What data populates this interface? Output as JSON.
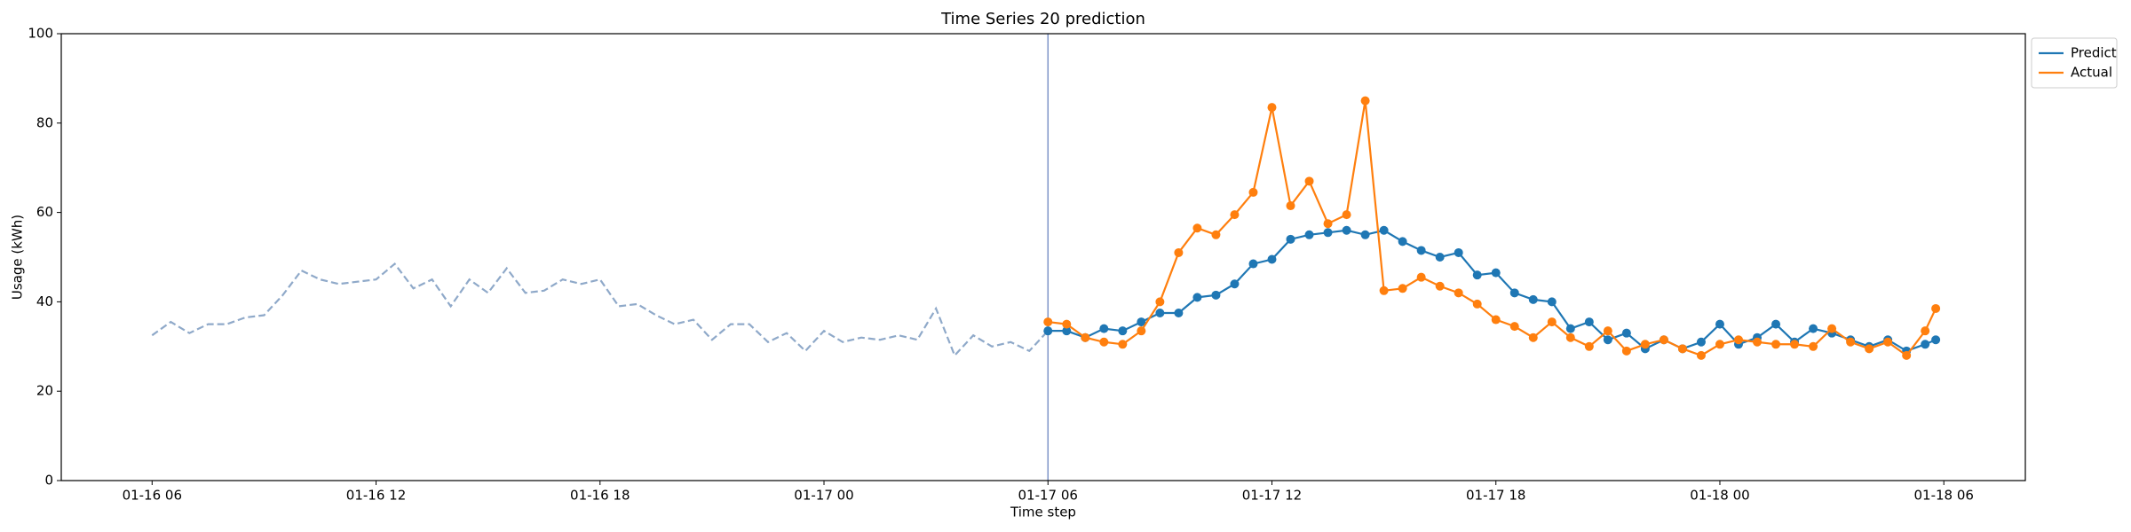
{
  "chart_data": {
    "type": "line",
    "title": "Time Series 20 prediction",
    "x_label": "Time step",
    "y_label": "Usage (kWh)",
    "xlim": [
      "01-16 03:34",
      "01-18 08:11"
    ],
    "xticks": [
      "01-16 06",
      "01-16 12",
      "01-16 18",
      "01-17 00",
      "01-17 06",
      "01-17 12",
      "01-17 18",
      "01-18 00",
      "01-18 06"
    ],
    "ylim": [
      0,
      100
    ],
    "yticks": [
      0,
      20,
      40,
      60,
      80,
      100
    ],
    "vline": "01-17 06",
    "vline_color": "#7f96c8",
    "legend": "upper right outside",
    "series": [
      {
        "color": "#8fa9c9",
        "style": "dashed",
        "x": [
          "01-16 06:00",
          "01-16 06:30",
          "01-16 07:00",
          "01-16 07:30",
          "01-16 08:00",
          "01-16 08:30",
          "01-16 09:00",
          "01-16 09:30",
          "01-16 10:00",
          "01-16 10:30",
          "01-16 11:00",
          "01-16 11:30",
          "01-16 12:00",
          "01-16 12:30",
          "01-16 13:00",
          "01-16 13:30",
          "01-16 14:00",
          "01-16 14:30",
          "01-16 15:00",
          "01-16 15:30",
          "01-16 16:00",
          "01-16 16:30",
          "01-16 17:00",
          "01-16 17:30",
          "01-16 18:00",
          "01-16 18:30",
          "01-16 19:00",
          "01-16 19:30",
          "01-16 20:00",
          "01-16 20:30",
          "01-16 21:00",
          "01-16 21:30",
          "01-16 22:00",
          "01-16 22:30",
          "01-16 23:00",
          "01-16 23:30",
          "01-17 00:00",
          "01-17 00:30",
          "01-17 01:00",
          "01-17 01:30",
          "01-17 02:00",
          "01-17 02:30",
          "01-17 03:00",
          "01-17 03:30",
          "01-17 04:00",
          "01-17 04:30",
          "01-17 05:00",
          "01-17 05:30",
          "01-17 06:00"
        ],
        "values": [
          32.5,
          35.5,
          33,
          35,
          35,
          36.5,
          37,
          41.5,
          47,
          45,
          44,
          44.5,
          45,
          48.5,
          43,
          45,
          39,
          45,
          42,
          47.5,
          42,
          42.5,
          45,
          44,
          45,
          39,
          39.5,
          37,
          35,
          36,
          31.5,
          35,
          35,
          31,
          33,
          29,
          33.5,
          31,
          32,
          31.5,
          32.5,
          31.5,
          38.5,
          28,
          32.5,
          30,
          31,
          29,
          33.5
        ]
      },
      {
        "name": "Predict",
        "color": "#1f77b4",
        "style": "solid",
        "marker": "o",
        "x": [
          "01-17 06:00",
          "01-17 06:30",
          "01-17 07:00",
          "01-17 07:30",
          "01-17 08:00",
          "01-17 08:30",
          "01-17 09:00",
          "01-17 09:30",
          "01-17 10:00",
          "01-17 10:30",
          "01-17 11:00",
          "01-17 11:30",
          "01-17 12:00",
          "01-17 12:30",
          "01-17 13:00",
          "01-17 13:30",
          "01-17 14:00",
          "01-17 14:30",
          "01-17 15:00",
          "01-17 15:30",
          "01-17 16:00",
          "01-17 16:30",
          "01-17 17:00",
          "01-17 17:30",
          "01-17 18:00",
          "01-17 18:30",
          "01-17 19:00",
          "01-17 19:30",
          "01-17 20:00",
          "01-17 20:30",
          "01-17 21:00",
          "01-17 21:30",
          "01-17 22:00",
          "01-17 22:30",
          "01-17 23:00",
          "01-17 23:30",
          "01-18 00:00",
          "01-18 00:30",
          "01-18 01:00",
          "01-18 01:30",
          "01-18 02:00",
          "01-18 02:30",
          "01-18 03:00",
          "01-18 03:30",
          "01-18 04:00",
          "01-18 04:30",
          "01-18 05:00",
          "01-18 05:30",
          "01-18 05:47"
        ],
        "values": [
          33.5,
          33.5,
          32,
          34,
          33.5,
          35.5,
          37.5,
          37.5,
          41,
          41.5,
          44,
          48.5,
          49.5,
          54,
          55,
          55.5,
          56,
          55,
          56,
          53.5,
          51.5,
          50,
          51,
          46,
          46.5,
          42,
          40.5,
          40,
          34,
          35.5,
          31.5,
          33,
          29.5,
          31.5,
          29.5,
          31,
          35,
          30.5,
          32,
          35,
          31,
          34,
          33,
          31.5,
          30,
          31.5,
          29,
          30.5,
          31.5
        ]
      },
      {
        "name": "Actual",
        "color": "#ff7f0e",
        "style": "solid",
        "marker": "o",
        "x": [
          "01-17 06:00",
          "01-17 06:30",
          "01-17 07:00",
          "01-17 07:30",
          "01-17 08:00",
          "01-17 08:30",
          "01-17 09:00",
          "01-17 09:30",
          "01-17 10:00",
          "01-17 10:30",
          "01-17 11:00",
          "01-17 11:30",
          "01-17 12:00",
          "01-17 12:30",
          "01-17 13:00",
          "01-17 13:30",
          "01-17 14:00",
          "01-17 14:30",
          "01-17 15:00",
          "01-17 15:30",
          "01-17 16:00",
          "01-17 16:30",
          "01-17 17:00",
          "01-17 17:30",
          "01-17 18:00",
          "01-17 18:30",
          "01-17 19:00",
          "01-17 19:30",
          "01-17 20:00",
          "01-17 20:30",
          "01-17 21:00",
          "01-17 21:30",
          "01-17 22:00",
          "01-17 22:30",
          "01-17 23:00",
          "01-17 23:30",
          "01-18 00:00",
          "01-18 00:30",
          "01-18 01:00",
          "01-18 01:30",
          "01-18 02:00",
          "01-18 02:30",
          "01-18 03:00",
          "01-18 03:30",
          "01-18 04:00",
          "01-18 04:30",
          "01-18 05:00",
          "01-18 05:30",
          "01-18 05:47"
        ],
        "values": [
          35.5,
          35,
          32,
          31,
          30.5,
          33.5,
          40,
          51,
          56.5,
          55,
          59.5,
          64.5,
          83.5,
          61.5,
          67,
          57.5,
          59.5,
          85,
          42.5,
          43,
          45.5,
          43.5,
          42,
          39.5,
          36,
          34.5,
          32,
          35.5,
          32,
          30,
          33.5,
          29,
          30.5,
          31.5,
          29.5,
          28,
          30.5,
          31.5,
          31,
          30.5,
          30.5,
          30,
          34,
          31,
          29.5,
          31,
          28,
          33.5,
          38.5
        ]
      }
    ]
  }
}
